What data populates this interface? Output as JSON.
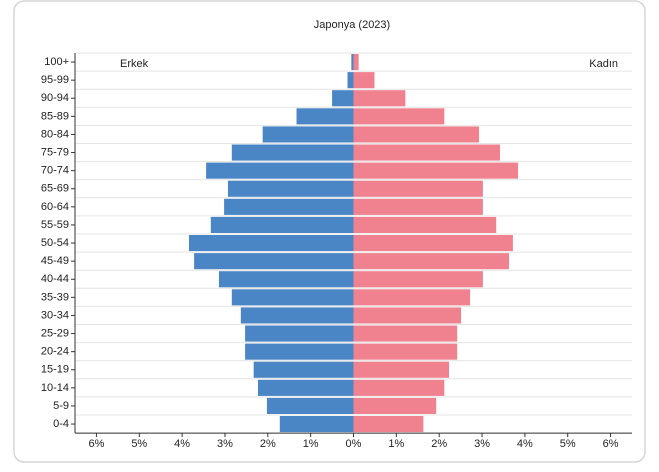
{
  "chart_data": {
    "type": "pyramid",
    "title": "Japonya (2023)",
    "categories": [
      "100+",
      "95-99",
      "90-94",
      "85-89",
      "80-84",
      "75-79",
      "70-74",
      "65-69",
      "60-64",
      "55-59",
      "50-54",
      "45-49",
      "40-44",
      "35-39",
      "30-34",
      "25-29",
      "20-24",
      "15-19",
      "10-14",
      "5-9",
      "0-4"
    ],
    "series": [
      {
        "name": "Erkek",
        "color": "#4a86c5",
        "side": "left",
        "values": [
          0.05,
          0.14,
          0.5,
          1.33,
          2.12,
          2.84,
          3.44,
          2.93,
          3.02,
          3.33,
          3.84,
          3.72,
          3.14,
          2.84,
          2.63,
          2.53,
          2.53,
          2.33,
          2.23,
          2.02,
          1.72
        ]
      },
      {
        "name": "Kadın",
        "color": "#f08290",
        "side": "right",
        "values": [
          0.12,
          0.49,
          1.21,
          2.12,
          2.93,
          3.42,
          3.84,
          3.02,
          3.02,
          3.33,
          3.72,
          3.63,
          3.02,
          2.72,
          2.51,
          2.42,
          2.42,
          2.23,
          2.12,
          1.93,
          1.63
        ]
      }
    ],
    "xlim": [
      -6.5,
      6.5
    ],
    "xticks": [
      {
        "value": -6,
        "label": "6%"
      },
      {
        "value": -5,
        "label": "5%"
      },
      {
        "value": -4,
        "label": "4%"
      },
      {
        "value": -3,
        "label": "3%"
      },
      {
        "value": -2,
        "label": "2%"
      },
      {
        "value": -1,
        "label": "1%"
      },
      {
        "value": 0,
        "label": "0%"
      },
      {
        "value": 1,
        "label": "1%"
      },
      {
        "value": 2,
        "label": "2%"
      },
      {
        "value": 3,
        "label": "3%"
      },
      {
        "value": 4,
        "label": "4%"
      },
      {
        "value": 5,
        "label": "5%"
      },
      {
        "value": 6,
        "label": "6%"
      }
    ]
  }
}
